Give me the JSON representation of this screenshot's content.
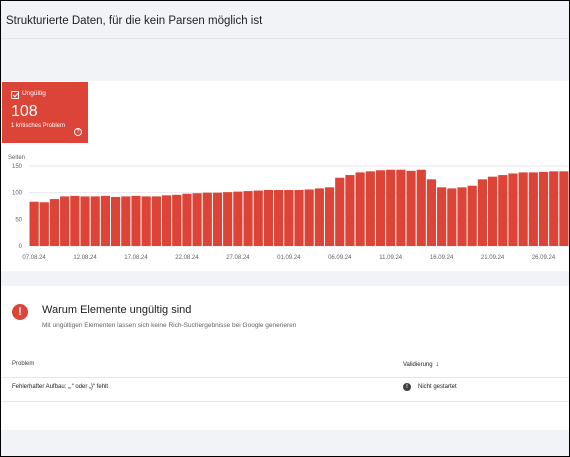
{
  "page": {
    "title": "Strukturierte Daten, für die kein Parsen möglich ist"
  },
  "status_tile": {
    "label": "Ungültig",
    "count": "108",
    "subtitle": "1 kritisches Problem",
    "help_icon": "help-circle-icon",
    "color": "#db4437"
  },
  "chart_data": {
    "type": "bar",
    "ylabel": "Seiten",
    "yticks": [
      0,
      50,
      100,
      150
    ],
    "ylim": [
      0,
      150
    ],
    "grid": true,
    "color": "#db4437",
    "xtick_labels": [
      "07.08.24",
      "12.08.24",
      "17.08.24",
      "22.08.24",
      "27.08.24",
      "01.09.24",
      "06.09.24",
      "11.09.24",
      "16.09.24",
      "21.09.24",
      "26.09.24"
    ],
    "xtick_every": 5,
    "values": [
      83,
      82,
      88,
      93,
      94,
      93,
      93,
      94,
      92,
      93,
      94,
      93,
      93,
      95,
      96,
      98,
      99,
      100,
      100,
      101,
      102,
      103,
      104,
      105,
      105,
      105,
      105,
      106,
      108,
      110,
      128,
      133,
      138,
      140,
      142,
      143,
      143,
      141,
      143,
      125,
      110,
      108,
      110,
      113,
      125,
      130,
      133,
      136,
      138,
      138,
      139,
      140,
      140
    ]
  },
  "issues": {
    "icon": "error-icon",
    "title": "Warum Elemente ungültig sind",
    "description": "Mit ungültigen Elementen lassen sich keine Rich-Suchergebnisse bei Google generieren",
    "columns": {
      "problem": "Problem",
      "validation": "Validierung",
      "sort_icon": "arrow-down-icon"
    },
    "rows": [
      {
        "problem": "Fehlerhafter Aufbau: „,“ oder „}“ fehlt",
        "status": "Nicht gestartet",
        "status_icon": "info-icon"
      }
    ]
  }
}
